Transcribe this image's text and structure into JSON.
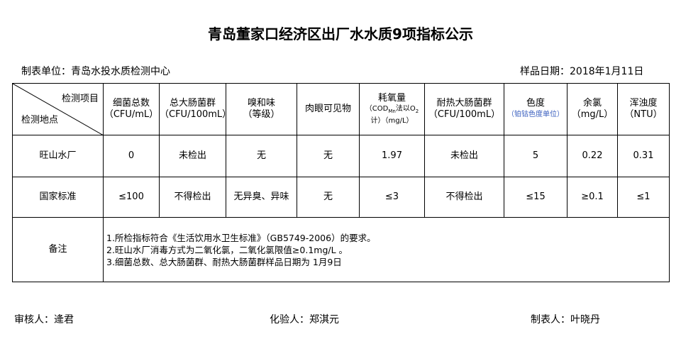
{
  "title": "青岛董家口经济区出厂水水质9项指标公示",
  "unit": "制表单位：青岛水投水质检测中心",
  "sample_date": "样品日期：2018年1月11日",
  "header": {
    "corner_top": "检测项目",
    "corner_bottom": "检测地点",
    "cols": [
      {
        "l1": "细菌总数",
        "l2": "（CFU/mL）"
      },
      {
        "l1": "总大肠菌群",
        "l2": "（CFU/100mL）"
      },
      {
        "l1": "嗅和味",
        "l2": "（等级）"
      },
      {
        "l1": "肉眼可见物",
        "l2": ""
      },
      {
        "l1": "耗氧量",
        "l2": "（COD",
        "sub1": "Mn",
        "l3": "法以O",
        "sub2": "2",
        "l4": "计）（mg/L）"
      },
      {
        "l1": "耐热大肠菌群",
        "l2": "（CFU/100mL）"
      },
      {
        "l1": "色度",
        "l2": "（铂钴色度单位）"
      },
      {
        "l1": "余氯",
        "l2": "（mg/L）"
      },
      {
        "l1": "浑浊度",
        "l2": "（NTU）"
      }
    ]
  },
  "rows": [
    {
      "name": "旺山水厂",
      "values": [
        "0",
        "未检出",
        "无",
        "无",
        "1.97",
        "未检出",
        "5",
        "0.22",
        "0.31"
      ]
    },
    {
      "name": "国家标准",
      "values": [
        "≤100",
        "不得检出",
        "无异臭、异味",
        "无",
        "≤3",
        "不得检出",
        "≤15",
        "≥0.1",
        "≤1"
      ]
    }
  ],
  "notes": {
    "label": "备注",
    "lines": [
      "1.所检指标符合《生活饮用水卫生标准》（GB5749-2006）的要求。",
      "2.旺山水厂消毒方式为二氧化氯，二氧化氯限值≥0.1mg/L 。",
      "3.细菌总数、总大肠菌群、耐热大肠菌群样品日期为 1月9日"
    ]
  },
  "footer": {
    "reviewer": "审核人：逄君",
    "tester": "化验人：郑淇元",
    "maker": "制表人：叶晓丹"
  },
  "colors": {
    "subtitle": "#3a5fbf"
  }
}
